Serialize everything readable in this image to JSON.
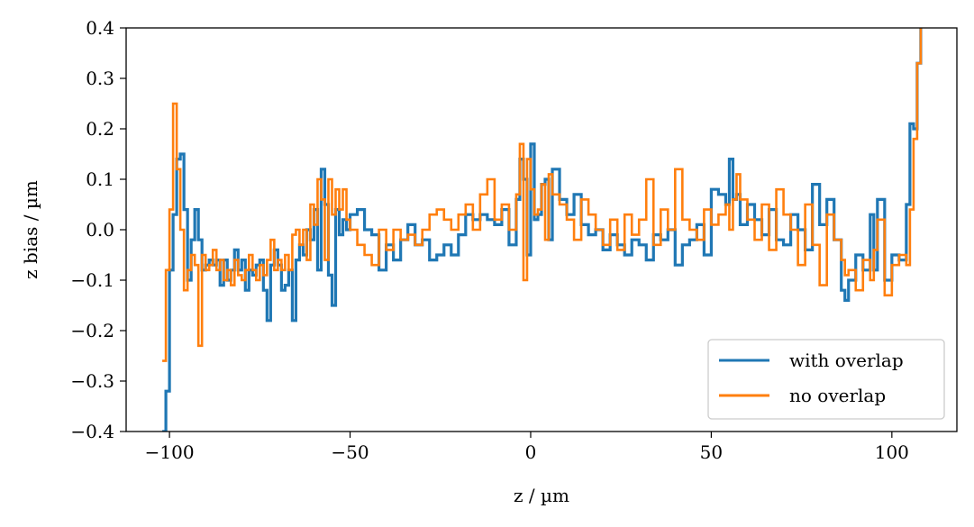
{
  "chart_data": {
    "type": "line",
    "drawstyle": "steps",
    "xlabel": "z / µm",
    "ylabel": "z bias / µm",
    "xlim": [
      -112,
      118
    ],
    "ylim": [
      -0.4,
      0.4
    ],
    "xticks": [
      -100,
      -50,
      0,
      50,
      100
    ],
    "xtick_labels": [
      "−100",
      "−50",
      "0",
      "50",
      "100"
    ],
    "yticks": [
      -0.4,
      -0.3,
      -0.2,
      -0.1,
      0.0,
      0.1,
      0.2,
      0.3,
      0.4
    ],
    "ytick_labels": [
      "−0.4",
      "−0.3",
      "−0.2",
      "−0.1",
      "0.0",
      "0.1",
      "0.2",
      "0.3",
      "0.4"
    ],
    "grid": false,
    "legend": {
      "position": "bottom-right",
      "entries": [
        "with overlap",
        "no overlap"
      ]
    },
    "series": [
      {
        "name": "with overlap",
        "color": "#1f77b4",
        "x": [
          -102,
          -101,
          -100,
          -99,
          -98,
          -97,
          -96,
          -95,
          -94,
          -93,
          -92,
          -91,
          -90,
          -89,
          -88,
          -87,
          -86,
          -85,
          -84,
          -83,
          -82,
          -81,
          -80,
          -79,
          -78,
          -77,
          -76,
          -75,
          -74,
          -73,
          -72,
          -71,
          -70,
          -69,
          -68,
          -67,
          -66,
          -65,
          -64,
          -63,
          -62,
          -61,
          -60,
          -59,
          -58,
          -57,
          -56,
          -55,
          -54,
          -53,
          -52,
          -51,
          -50,
          -48,
          -46,
          -44,
          -42,
          -40,
          -38,
          -36,
          -34,
          -32,
          -30,
          -28,
          -26,
          -24,
          -22,
          -20,
          -18,
          -16,
          -14,
          -12,
          -10,
          -8,
          -6,
          -4,
          -3,
          -2,
          -1,
          0,
          1,
          2,
          3,
          4,
          5,
          6,
          8,
          10,
          12,
          14,
          16,
          18,
          20,
          22,
          24,
          26,
          28,
          30,
          32,
          34,
          36,
          38,
          40,
          42,
          44,
          46,
          48,
          50,
          52,
          54,
          55,
          56,
          57,
          58,
          60,
          62,
          64,
          66,
          68,
          70,
          72,
          74,
          76,
          78,
          80,
          82,
          84,
          86,
          87,
          88,
          90,
          92,
          94,
          95,
          96,
          98,
          100,
          102,
          104,
          105,
          106,
          107,
          108
        ],
        "y": [
          -0.4,
          -0.32,
          -0.08,
          0.03,
          0.14,
          0.15,
          0.04,
          -0.1,
          -0.02,
          0.04,
          -0.02,
          -0.08,
          -0.07,
          -0.06,
          -0.07,
          -0.06,
          -0.11,
          -0.06,
          -0.1,
          -0.08,
          -0.04,
          -0.08,
          -0.06,
          -0.12,
          -0.08,
          -0.09,
          -0.07,
          -0.06,
          -0.12,
          -0.18,
          -0.07,
          -0.04,
          -0.07,
          -0.12,
          -0.11,
          -0.08,
          -0.18,
          -0.06,
          -0.03,
          -0.05,
          0.0,
          -0.02,
          0.04,
          -0.08,
          0.12,
          0.05,
          -0.09,
          -0.15,
          0.04,
          -0.01,
          0.02,
          0.0,
          0.03,
          0.04,
          0.0,
          -0.01,
          -0.08,
          -0.03,
          -0.06,
          -0.02,
          0.01,
          -0.03,
          -0.02,
          -0.06,
          -0.05,
          -0.03,
          -0.05,
          -0.01,
          0.03,
          0.02,
          0.03,
          0.02,
          0.01,
          0.04,
          -0.03,
          0.06,
          0.14,
          0.1,
          -0.05,
          0.17,
          0.02,
          0.03,
          0.09,
          0.1,
          -0.02,
          0.12,
          0.06,
          0.03,
          0.07,
          0.01,
          -0.01,
          0.0,
          -0.04,
          -0.01,
          -0.03,
          -0.05,
          -0.02,
          -0.03,
          -0.06,
          -0.01,
          -0.02,
          0.0,
          -0.07,
          -0.03,
          -0.02,
          0.01,
          -0.05,
          0.08,
          0.07,
          0.05,
          0.14,
          0.06,
          0.07,
          0.01,
          0.05,
          0.02,
          -0.01,
          0.04,
          -0.02,
          -0.03,
          0.03,
          0.0,
          -0.04,
          0.09,
          0.01,
          0.06,
          -0.02,
          -0.12,
          -0.14,
          -0.1,
          -0.05,
          -0.08,
          0.03,
          -0.08,
          0.06,
          -0.1,
          -0.05,
          -0.06,
          0.05,
          0.21,
          0.2,
          0.33,
          0.4
        ]
      },
      {
        "name": "no overlap",
        "color": "#ff7f0e",
        "x": [
          -102,
          -101,
          -100,
          -99,
          -98,
          -97,
          -96,
          -95,
          -94,
          -93,
          -92,
          -91,
          -90,
          -89,
          -88,
          -87,
          -86,
          -85,
          -84,
          -83,
          -82,
          -81,
          -80,
          -79,
          -78,
          -77,
          -76,
          -75,
          -74,
          -73,
          -72,
          -71,
          -70,
          -69,
          -68,
          -67,
          -66,
          -65,
          -64,
          -63,
          -62,
          -61,
          -60,
          -59,
          -58,
          -57,
          -56,
          -55,
          -54,
          -53,
          -52,
          -51,
          -50,
          -48,
          -46,
          -44,
          -42,
          -40,
          -38,
          -36,
          -34,
          -32,
          -30,
          -28,
          -26,
          -24,
          -22,
          -20,
          -18,
          -16,
          -14,
          -12,
          -10,
          -8,
          -6,
          -4,
          -3,
          -2,
          -1,
          0,
          1,
          2,
          3,
          4,
          5,
          6,
          8,
          10,
          12,
          14,
          16,
          18,
          20,
          22,
          24,
          26,
          28,
          30,
          32,
          34,
          36,
          38,
          40,
          42,
          44,
          46,
          48,
          50,
          52,
          54,
          55,
          56,
          57,
          58,
          60,
          62,
          64,
          66,
          68,
          70,
          72,
          74,
          76,
          78,
          80,
          82,
          84,
          86,
          87,
          88,
          90,
          92,
          94,
          95,
          96,
          98,
          100,
          102,
          104,
          105,
          106,
          107,
          108
        ],
        "y": [
          -0.26,
          -0.08,
          0.04,
          0.25,
          0.12,
          0.0,
          -0.12,
          -0.08,
          -0.05,
          -0.07,
          -0.23,
          -0.05,
          -0.08,
          -0.07,
          -0.04,
          -0.08,
          -0.06,
          -0.1,
          -0.08,
          -0.11,
          -0.06,
          -0.09,
          -0.1,
          -0.08,
          -0.05,
          -0.08,
          -0.1,
          -0.07,
          -0.09,
          -0.06,
          -0.02,
          -0.08,
          -0.06,
          -0.08,
          -0.05,
          -0.08,
          -0.01,
          0.0,
          -0.03,
          0.0,
          -0.06,
          0.05,
          0.01,
          0.1,
          0.06,
          -0.06,
          0.1,
          0.03,
          0.08,
          0.04,
          0.08,
          0.02,
          0.0,
          -0.03,
          -0.05,
          -0.07,
          0.0,
          -0.04,
          0.0,
          -0.02,
          -0.01,
          -0.03,
          0.0,
          0.03,
          0.04,
          0.02,
          0.0,
          0.03,
          0.05,
          0.0,
          0.07,
          0.1,
          0.02,
          0.05,
          0.0,
          0.07,
          0.17,
          -0.1,
          0.14,
          0.08,
          0.03,
          0.04,
          0.09,
          -0.02,
          0.11,
          0.07,
          0.05,
          0.02,
          -0.02,
          0.06,
          0.03,
          0.0,
          -0.03,
          0.02,
          -0.04,
          0.03,
          -0.01,
          0.02,
          0.1,
          -0.03,
          0.04,
          0.0,
          0.12,
          0.02,
          0.0,
          -0.02,
          0.04,
          0.01,
          0.03,
          0.05,
          0.0,
          0.06,
          0.11,
          0.06,
          0.02,
          -0.02,
          0.05,
          -0.04,
          0.08,
          0.03,
          0.0,
          -0.07,
          0.05,
          -0.03,
          -0.11,
          0.03,
          -0.02,
          -0.06,
          -0.09,
          -0.08,
          -0.12,
          -0.06,
          -0.1,
          -0.04,
          0.02,
          -0.13,
          -0.07,
          -0.05,
          -0.07,
          0.04,
          0.18,
          0.33,
          0.4
        ]
      }
    ]
  }
}
